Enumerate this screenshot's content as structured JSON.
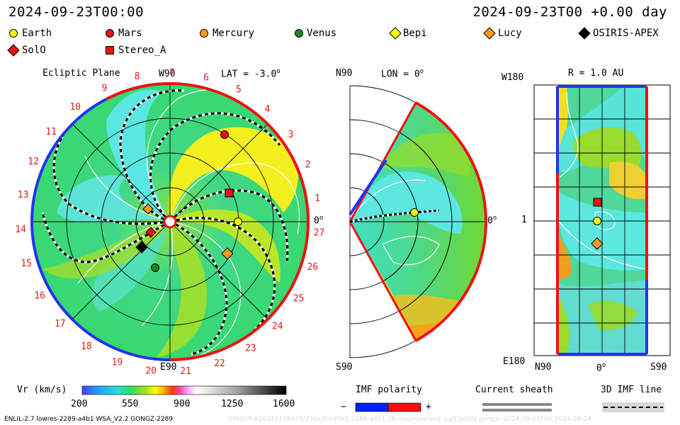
{
  "header": {
    "time_left": "2024-09-23T00:00",
    "time_right": "2024-09-23T00 +0.00 day"
  },
  "legend": [
    {
      "name": "Earth",
      "shape": "circle",
      "color": "#ffff00"
    },
    {
      "name": "Mars",
      "shape": "circle",
      "color": "#ee1111"
    },
    {
      "name": "Mercury",
      "shape": "circle",
      "color": "#ff9a1a"
    },
    {
      "name": "Venus",
      "shape": "circle",
      "color": "#1a8a1a"
    },
    {
      "name": "Bepi",
      "shape": "diamond",
      "color": "#ffff00"
    },
    {
      "name": "Lucy",
      "shape": "diamond",
      "color": "#ff9a1a"
    },
    {
      "name": "OSIRIS-APEX",
      "shape": "diamond",
      "color": "#000000"
    },
    {
      "name": "SolO",
      "shape": "diamond",
      "color": "#ee1111"
    },
    {
      "name": "Stereo_A",
      "shape": "square",
      "color": "#ee1111"
    }
  ],
  "panels": {
    "ecliptic": {
      "title": "Ecliptic Plane",
      "lat_label": "LAT = -3.0",
      "top_label": "W90",
      "bottom_label": "E90",
      "right_label": "0",
      "carrington_ticks": [
        "1",
        "2",
        "3",
        "4",
        "5",
        "6",
        "7",
        "8",
        "9",
        "10",
        "11",
        "12",
        "13",
        "14",
        "15",
        "16",
        "17",
        "18",
        "19",
        "20",
        "21",
        "22",
        "23",
        "24",
        "25",
        "26",
        "27"
      ]
    },
    "meridional": {
      "lon_label": "LON = 0",
      "top_label": "N90",
      "bottom_label": "S90",
      "right_label": "0"
    },
    "sphere": {
      "r_label": "R = 1.0 AU",
      "top_left_label": "W180",
      "bottom_left_label": "E180",
      "mid_left_label": "1",
      "bottom_x_labels": [
        "N90",
        "0",
        "S90"
      ]
    }
  },
  "colorbar": {
    "label": "Vr (km/s)",
    "ticks": [
      "200",
      "550",
      "900",
      "1250",
      "1600"
    ],
    "range": [
      200,
      1600
    ]
  },
  "imf": {
    "title": "IMF polarity",
    "minus": "−",
    "plus": "+",
    "colors": [
      "#0022ee",
      "#ee1111"
    ]
  },
  "current_sheath": {
    "title": "Current sheath"
  },
  "imf_line": {
    "title": "3D IMF line"
  },
  "footer": {
    "left": "ENLIL-2.7 lowres-2289-a4b1 WSA_V2.2 GONGZ-2289",
    "watermark": "UNIQUE#20241118435/256x30x90x1.2289-a4b1.16--noptunenied--Lg53q5d2.gongz--2024-09-23T00   2024-09-24"
  },
  "chart_data": {
    "type": "heatmap",
    "title": "Vr (km/s)",
    "value_range": [
      200,
      1600
    ],
    "ticks": [
      200,
      550,
      900,
      1250,
      1600
    ],
    "bodies": [
      "Earth",
      "Mars",
      "Mercury",
      "Venus",
      "Bepi",
      "Lucy",
      "OSIRIS-APEX",
      "SolO",
      "Stereo_A"
    ]
  }
}
